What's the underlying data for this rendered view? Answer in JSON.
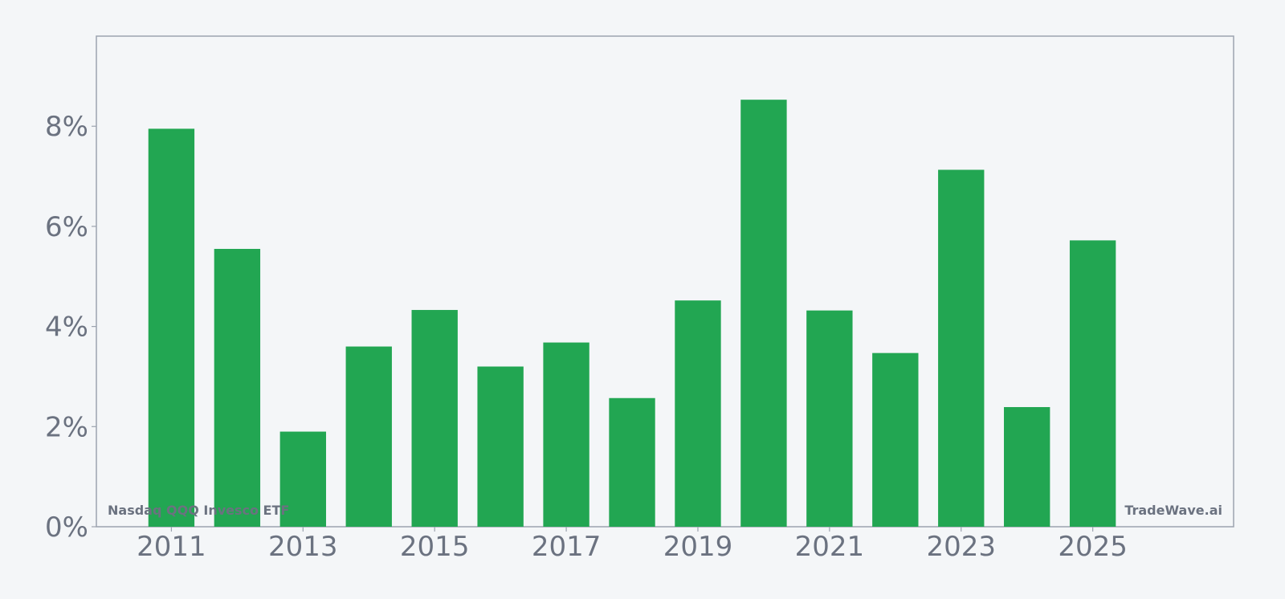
{
  "chart_data": {
    "type": "bar",
    "categories": [
      "2011",
      "2012",
      "2013",
      "2014",
      "2015",
      "2016",
      "2017",
      "2018",
      "2019",
      "2020",
      "2021",
      "2022",
      "2023",
      "2024",
      "2025"
    ],
    "values": [
      7.95,
      5.55,
      1.9,
      3.6,
      4.33,
      3.2,
      3.68,
      2.57,
      4.52,
      8.53,
      4.32,
      3.47,
      7.13,
      2.39,
      5.72
    ],
    "value_unit": "%",
    "title": "",
    "xlabel": "",
    "ylabel": "",
    "ylim": [
      0,
      9.8
    ],
    "xlim": [
      2009.86,
      2027.14
    ],
    "y_ticks": [
      0,
      2,
      4,
      6,
      8
    ],
    "y_tick_labels": [
      "0%",
      "2%",
      "4%",
      "6%",
      "8%"
    ],
    "x_ticks": [
      2011,
      2013,
      2015,
      2017,
      2019,
      2021,
      2023,
      2025
    ],
    "x_tick_labels": [
      "2011",
      "2013",
      "2015",
      "2017",
      "2019",
      "2021",
      "2023",
      "2025"
    ],
    "grid": false,
    "legend": "none",
    "bar_width": 0.7,
    "colors": {
      "bar": "#22a652",
      "background": "#f4f6f8",
      "frame": "#9ca3af",
      "text": "#6b7280"
    },
    "watermarks": {
      "left": "Nasdaq QQQ Invesco ETF",
      "right": "TradeWave.ai"
    }
  }
}
